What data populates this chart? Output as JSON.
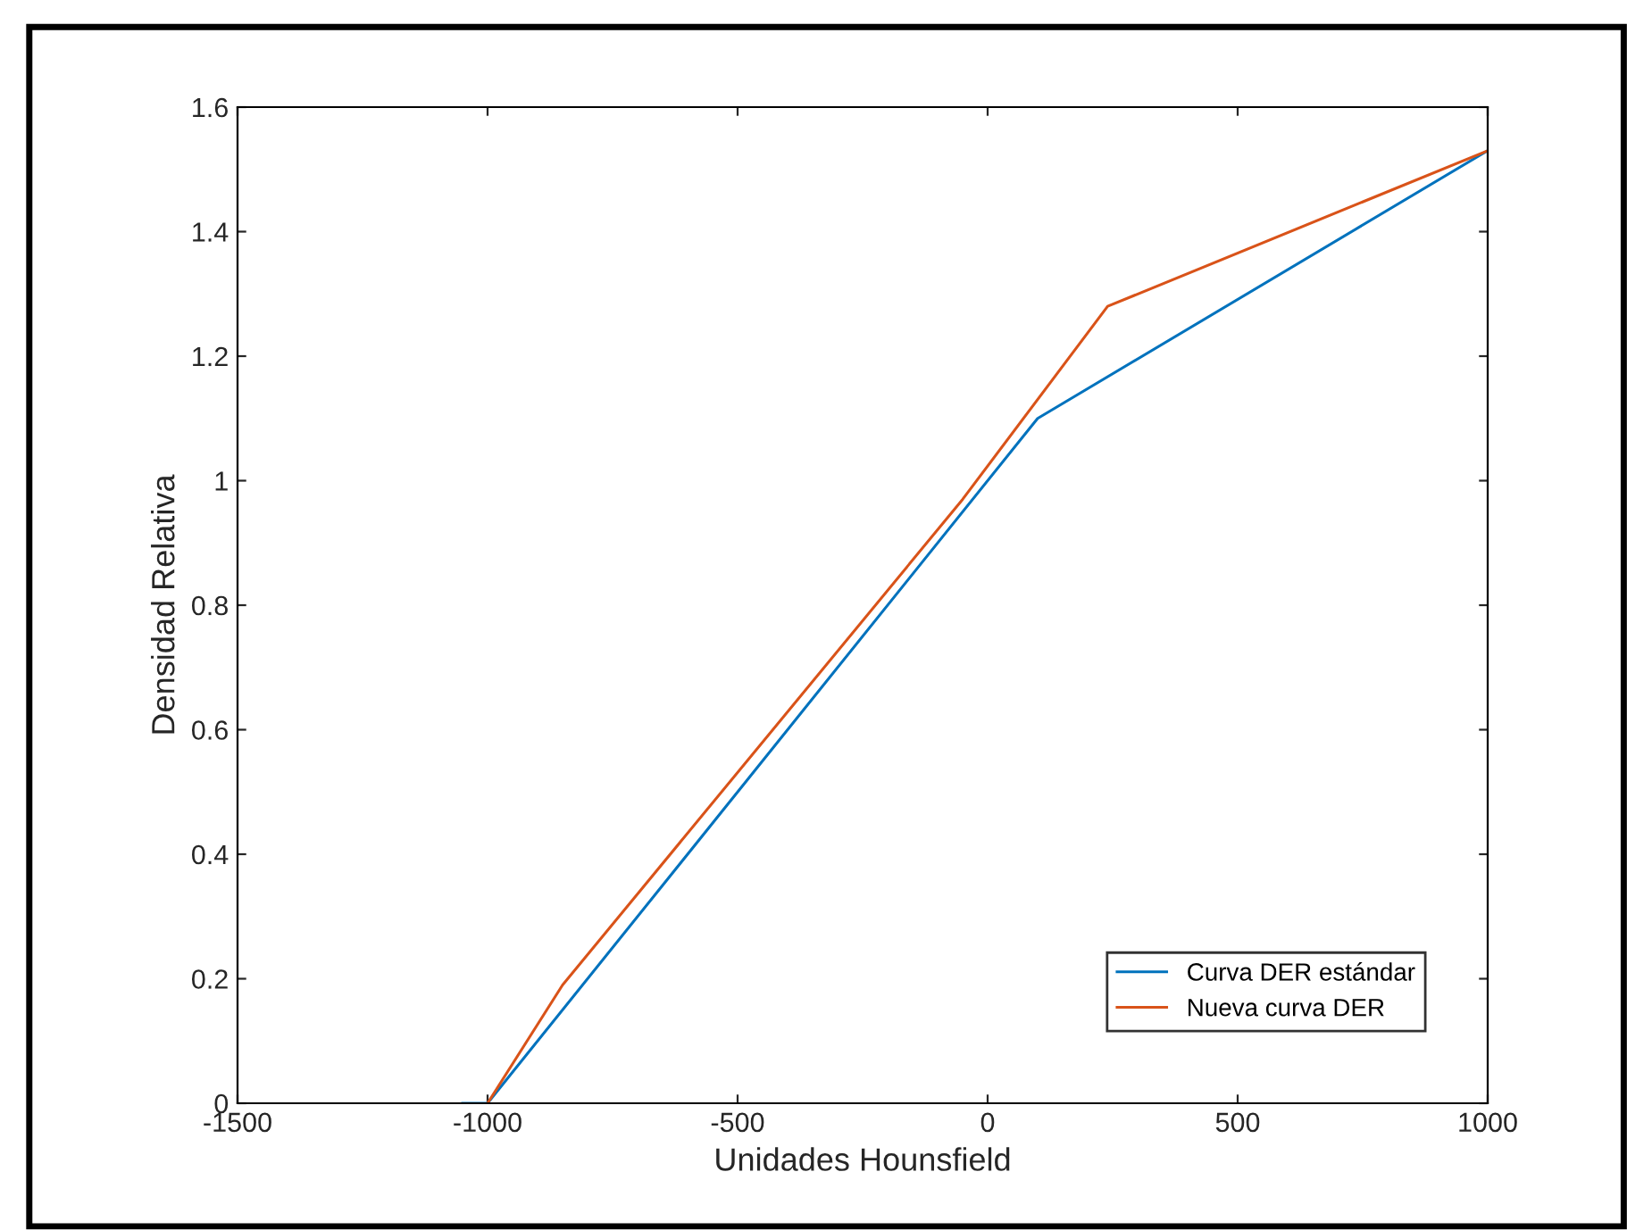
{
  "chart_data": {
    "type": "line",
    "xlabel": "Unidades Hounsfield",
    "ylabel": "Densidad Relativa",
    "series": [
      {
        "name": "Curva DER estándar",
        "color": "#0072bd",
        "x": [
          -1050,
          -1000,
          100,
          1000
        ],
        "values": [
          0,
          0,
          1.1,
          1.53
        ]
      },
      {
        "name": "Nueva curva DER",
        "color": "#d95319",
        "x": [
          -1000,
          -850,
          -50,
          240,
          1000
        ],
        "values": [
          0,
          0.19,
          0.97,
          1.28,
          1.53
        ]
      }
    ],
    "xlim": [
      -1500,
      1000
    ],
    "xticks": [
      -1500,
      -1000,
      -500,
      0,
      500,
      1000
    ],
    "ylim": [
      0,
      1.6
    ],
    "yticks": [
      0,
      0.2,
      0.4,
      0.6,
      0.8,
      1,
      1.2,
      1.4,
      1.6
    ],
    "grid": false,
    "legend": "bottom right",
    "marker": "none",
    "line_style": "solid"
  }
}
